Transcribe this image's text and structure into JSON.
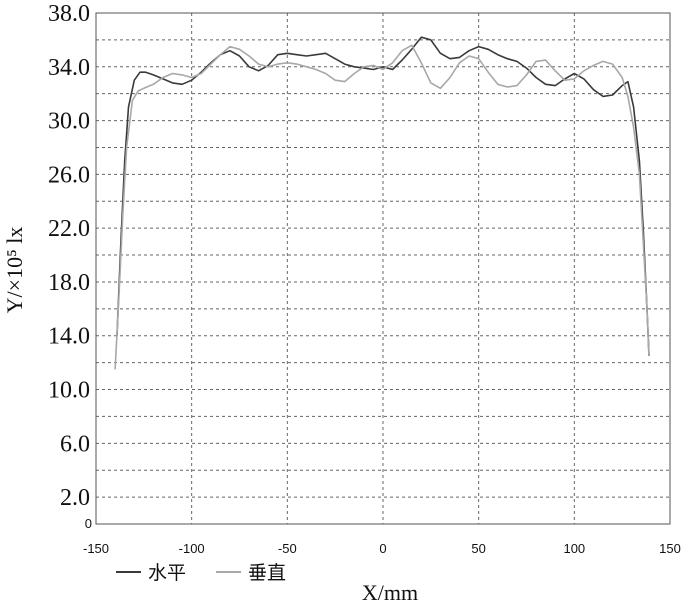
{
  "chart_data": {
    "type": "line",
    "xlabel": "X/mm",
    "ylabel": "Y/×10⁵ lx",
    "xlim": [
      -150,
      150
    ],
    "ylim": [
      0,
      38
    ],
    "x_ticks": [
      "-150",
      "-100",
      "-50",
      "0",
      "50",
      "100",
      "150"
    ],
    "y_ticks": [
      "2.0",
      "6.0",
      "10.0",
      "14.0",
      "18.0",
      "22.0",
      "26.0",
      "30.0",
      "34.0",
      "38.0"
    ],
    "y_zero_label": "0",
    "grid": true,
    "legend_position": "bottom-left",
    "series": [
      {
        "name": "水平",
        "color": "#3a3a3a",
        "x": [
          -139,
          -137,
          -135,
          -133,
          -130,
          -127,
          -124,
          -120,
          -115,
          -110,
          -105,
          -100,
          -95,
          -90,
          -85,
          -80,
          -75,
          -70,
          -65,
          -60,
          -55,
          -50,
          -45,
          -40,
          -35,
          -30,
          -25,
          -20,
          -15,
          -10,
          -5,
          0,
          5,
          10,
          15,
          20,
          25,
          30,
          35,
          40,
          45,
          50,
          55,
          60,
          65,
          70,
          75,
          80,
          85,
          90,
          95,
          100,
          105,
          110,
          115,
          120,
          125,
          128,
          131,
          134,
          136,
          138,
          139
        ],
        "y": [
          14.0,
          21.0,
          27.0,
          31.0,
          33.0,
          33.6,
          33.6,
          33.4,
          33.1,
          32.8,
          32.7,
          33.0,
          33.6,
          34.3,
          34.9,
          35.2,
          34.8,
          34.0,
          33.7,
          34.1,
          34.9,
          35.0,
          34.9,
          34.8,
          34.9,
          35.0,
          34.6,
          34.2,
          34.0,
          33.9,
          33.8,
          34.0,
          33.8,
          34.5,
          35.3,
          36.2,
          36.0,
          35.0,
          34.6,
          34.7,
          35.2,
          35.5,
          35.3,
          34.9,
          34.6,
          34.4,
          33.9,
          33.2,
          32.7,
          32.6,
          33.1,
          33.5,
          33.1,
          32.3,
          31.8,
          31.9,
          32.6,
          32.9,
          31.0,
          27.0,
          22.0,
          16.0,
          12.5
        ]
      },
      {
        "name": "垂直",
        "color": "#a8a8a8",
        "x": [
          -140,
          -138,
          -136,
          -134,
          -131,
          -128,
          -125,
          -120,
          -115,
          -110,
          -105,
          -100,
          -95,
          -90,
          -85,
          -80,
          -75,
          -70,
          -65,
          -60,
          -55,
          -50,
          -45,
          -40,
          -35,
          -30,
          -25,
          -20,
          -15,
          -10,
          -5,
          0,
          5,
          10,
          15,
          20,
          25,
          30,
          35,
          40,
          45,
          50,
          55,
          60,
          65,
          70,
          75,
          80,
          85,
          90,
          95,
          100,
          105,
          110,
          115,
          120,
          125,
          128,
          131,
          134,
          136,
          138,
          139
        ],
        "y": [
          11.5,
          17.0,
          23.0,
          28.0,
          31.5,
          32.2,
          32.4,
          32.7,
          33.2,
          33.5,
          33.4,
          33.2,
          33.5,
          34.2,
          34.9,
          35.5,
          35.3,
          34.8,
          34.2,
          34.0,
          34.2,
          34.3,
          34.2,
          34.0,
          33.8,
          33.5,
          33.0,
          32.9,
          33.5,
          34.0,
          34.1,
          33.8,
          34.3,
          35.2,
          35.6,
          34.3,
          32.8,
          32.4,
          33.2,
          34.3,
          34.8,
          34.6,
          33.6,
          32.7,
          32.5,
          32.6,
          33.4,
          34.4,
          34.5,
          33.7,
          33.0,
          33.1,
          33.7,
          34.1,
          34.4,
          34.2,
          33.2,
          31.8,
          29.5,
          26.0,
          21.0,
          16.0,
          12.5
        ]
      }
    ]
  }
}
